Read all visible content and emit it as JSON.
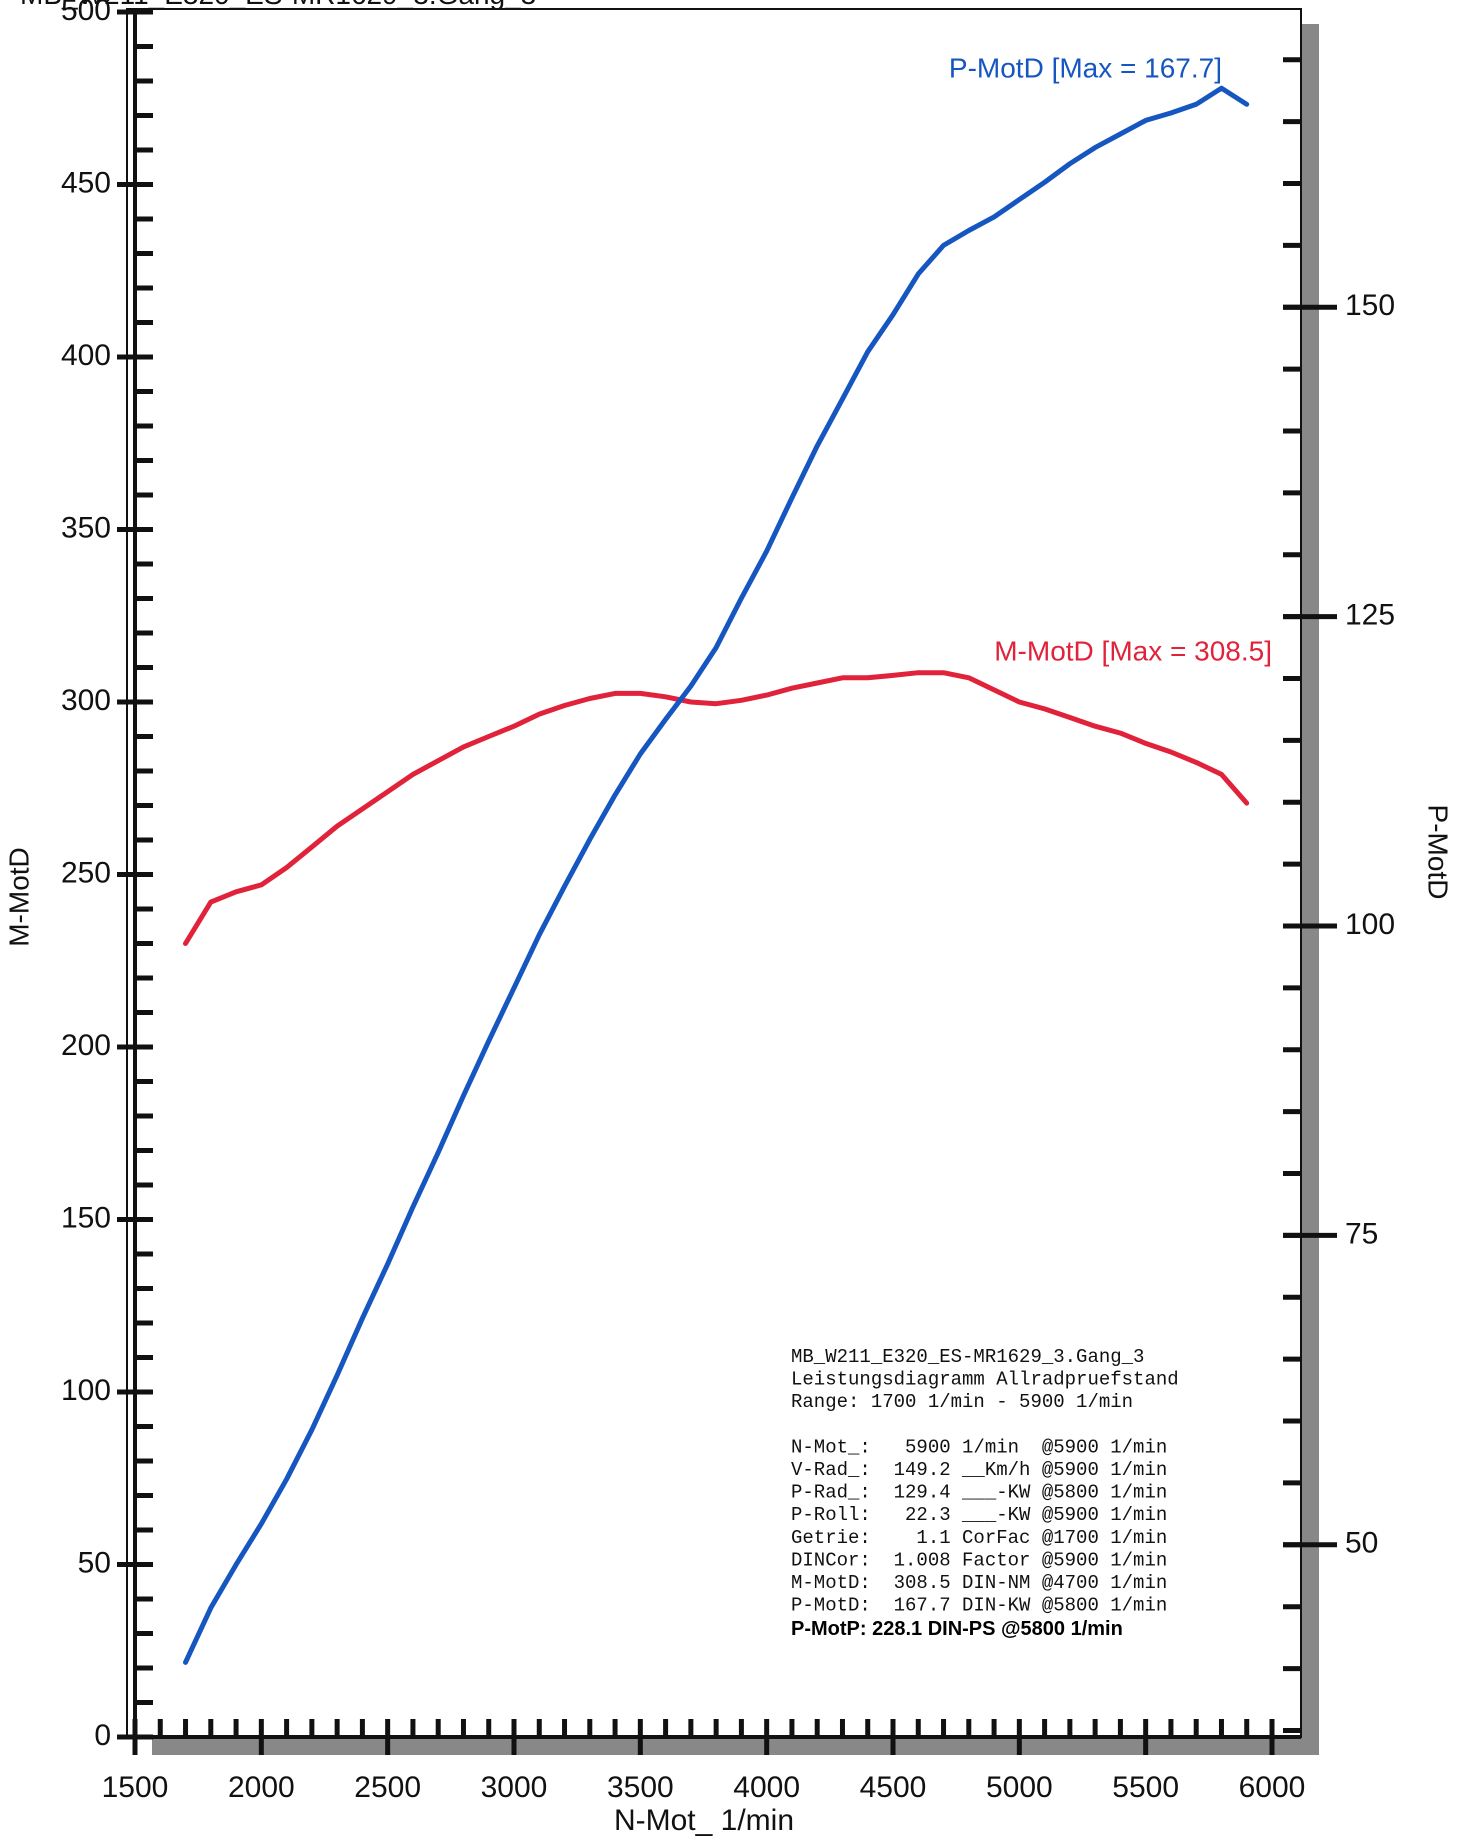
{
  "chart_data": {
    "type": "line",
    "title": "MB_W211_E320_ES-MR1629_3.Gang_3",
    "xlabel": "N-Mot_ 1/min",
    "ylabel": "M-MotD",
    "y2label": "P-MotD",
    "x": [
      1700,
      1800,
      1900,
      2000,
      2100,
      2200,
      2300,
      2400,
      2500,
      2600,
      2700,
      2800,
      2900,
      3000,
      3100,
      3200,
      3300,
      3400,
      3500,
      3600,
      3700,
      3800,
      3900,
      4000,
      4100,
      4200,
      4300,
      4400,
      4500,
      4600,
      4700,
      4800,
      4900,
      5000,
      5100,
      5200,
      5300,
      5400,
      5500,
      5600,
      5700,
      5800,
      5900
    ],
    "series": [
      {
        "name": "M-MotD",
        "color": "#e0233a",
        "values": [
          230,
          242,
          245,
          247,
          252,
          258,
          264,
          269,
          274,
          279,
          283,
          287,
          290,
          293,
          296.5,
          299,
          301,
          302.5,
          302.5,
          301.5,
          300,
          299.5,
          300.5,
          302,
          304,
          305.5,
          307,
          307,
          307.7,
          308.5,
          308.5,
          307,
          303.5,
          300,
          298,
          295.5,
          293,
          291,
          288,
          285.5,
          282.5,
          279,
          270.7
        ]
      },
      {
        "name": "P-MotD",
        "color": "#1656c0",
        "axis": "y2",
        "values": [
          40.5,
          44.9,
          48.4,
          51.7,
          55.3,
          59.3,
          63.7,
          68.3,
          72.7,
          77.3,
          81.7,
          86.3,
          90.7,
          95.0,
          99.3,
          103.2,
          107,
          110.6,
          113.9,
          116.7,
          119.4,
          122.5,
          126.5,
          130.3,
          134.6,
          138.8,
          142.6,
          146.4,
          149.4,
          152.7,
          155,
          156.2,
          157.3,
          158.7,
          160.1,
          161.6,
          162.9,
          164,
          165.1,
          165.7,
          166.4,
          167.7,
          166.4
        ]
      }
    ],
    "annotations": [
      "P-MotD [Max = 167.7]",
      "M-MotD [Max = 308.5]"
    ],
    "xlim": [
      1500,
      6000
    ],
    "xticks": [
      1500,
      2000,
      2500,
      3000,
      3500,
      4000,
      4500,
      5000,
      5500,
      6000
    ],
    "ylim": [
      0,
      500
    ],
    "yticks": [
      0,
      50,
      100,
      150,
      200,
      250,
      300,
      350,
      400,
      450,
      500
    ],
    "y2lim": [
      34.47,
      173.86
    ],
    "y2ticks": [
      50,
      75,
      100,
      125,
      150
    ],
    "info_lines": [
      "MB_W211_E320_ES-MR1629_3.Gang_3",
      "Leistungsdiagramm Allradpruefstand",
      "Range: 1700 1/min - 5900 1/min",
      "N-Mot_:   5900 1/min  @5900 1/min",
      "V-Rad_:  149.2 __Km/h @5900 1/min",
      "P-Rad_:  129.4 ___-KW @5800 1/min",
      "P-Roll:   22.3 ___-KW @5900 1/min",
      "Getrie:    1.1 CorFac @1700 1/min",
      "DINCor:  1.008 Factor @5900 1/min",
      "M-MotD:  308.5 DIN-NM @4700 1/min",
      "P-MotD:  167.7 DIN-KW @5800 1/min"
    ],
    "info_summary": "P-MotP:  228.1 DIN-PS @5800 1/min"
  }
}
